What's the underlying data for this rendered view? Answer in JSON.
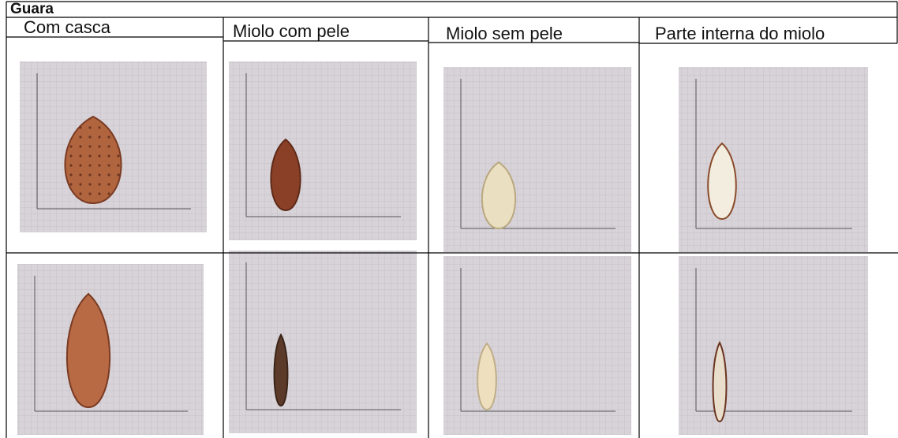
{
  "header": {
    "title": "Guara"
  },
  "table": {
    "columns": [
      "Com casca",
      "Miolo com pele",
      "Miolo sem pele",
      "Parte interna do miolo"
    ]
  }
}
